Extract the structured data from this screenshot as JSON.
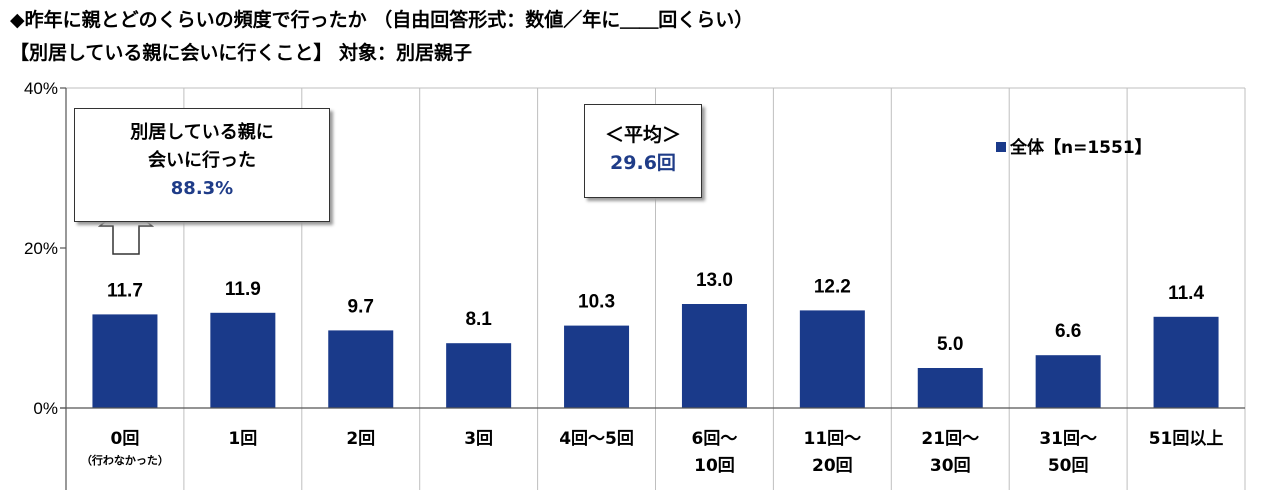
{
  "header": {
    "title_line1": "◆昨年に親とどのくらいの頻度で行ったか （自由回答形式：数値／年に＿＿回くらい）",
    "title_line2": "【別居している親に会いに行くこと】 対象：別居親子"
  },
  "annotation_box1": {
    "line1": "別居している親に",
    "line2": "会いに行った",
    "value": "88.3%"
  },
  "annotation_box2": {
    "line1": "＜平均＞",
    "value": "29.6回"
  },
  "legend": {
    "label": "全体【n=1551】"
  },
  "colors": {
    "bar": "#1a3a8a",
    "grid": "#bfbfbf",
    "annotation_value": "#1f3c88"
  },
  "chart_data": {
    "type": "bar",
    "categories": [
      [
        "0回",
        "（行わなかった）"
      ],
      [
        "1回"
      ],
      [
        "2回"
      ],
      [
        "3回"
      ],
      [
        "4回～5回"
      ],
      [
        "6回～",
        "10回"
      ],
      [
        "11回～",
        "20回"
      ],
      [
        "21回～",
        "30回"
      ],
      [
        "31回～",
        "50回"
      ],
      [
        "51回以上"
      ]
    ],
    "series": [
      {
        "name": "全体【n=1551】",
        "values": [
          11.7,
          11.9,
          9.7,
          8.1,
          10.3,
          13.0,
          12.2,
          5.0,
          6.6,
          11.4
        ]
      }
    ],
    "value_labels": [
      "11.7",
      "11.9",
      "9.7",
      "8.1",
      "10.3",
      "13.0",
      "12.2",
      "5.0",
      "6.6",
      "11.4"
    ],
    "ylim": [
      0,
      40
    ],
    "yticks": [
      0,
      20,
      40
    ],
    "ytick_labels": [
      "0%",
      "20%",
      "40%"
    ],
    "grid": "vertical separators",
    "legend_position": "top-right"
  }
}
